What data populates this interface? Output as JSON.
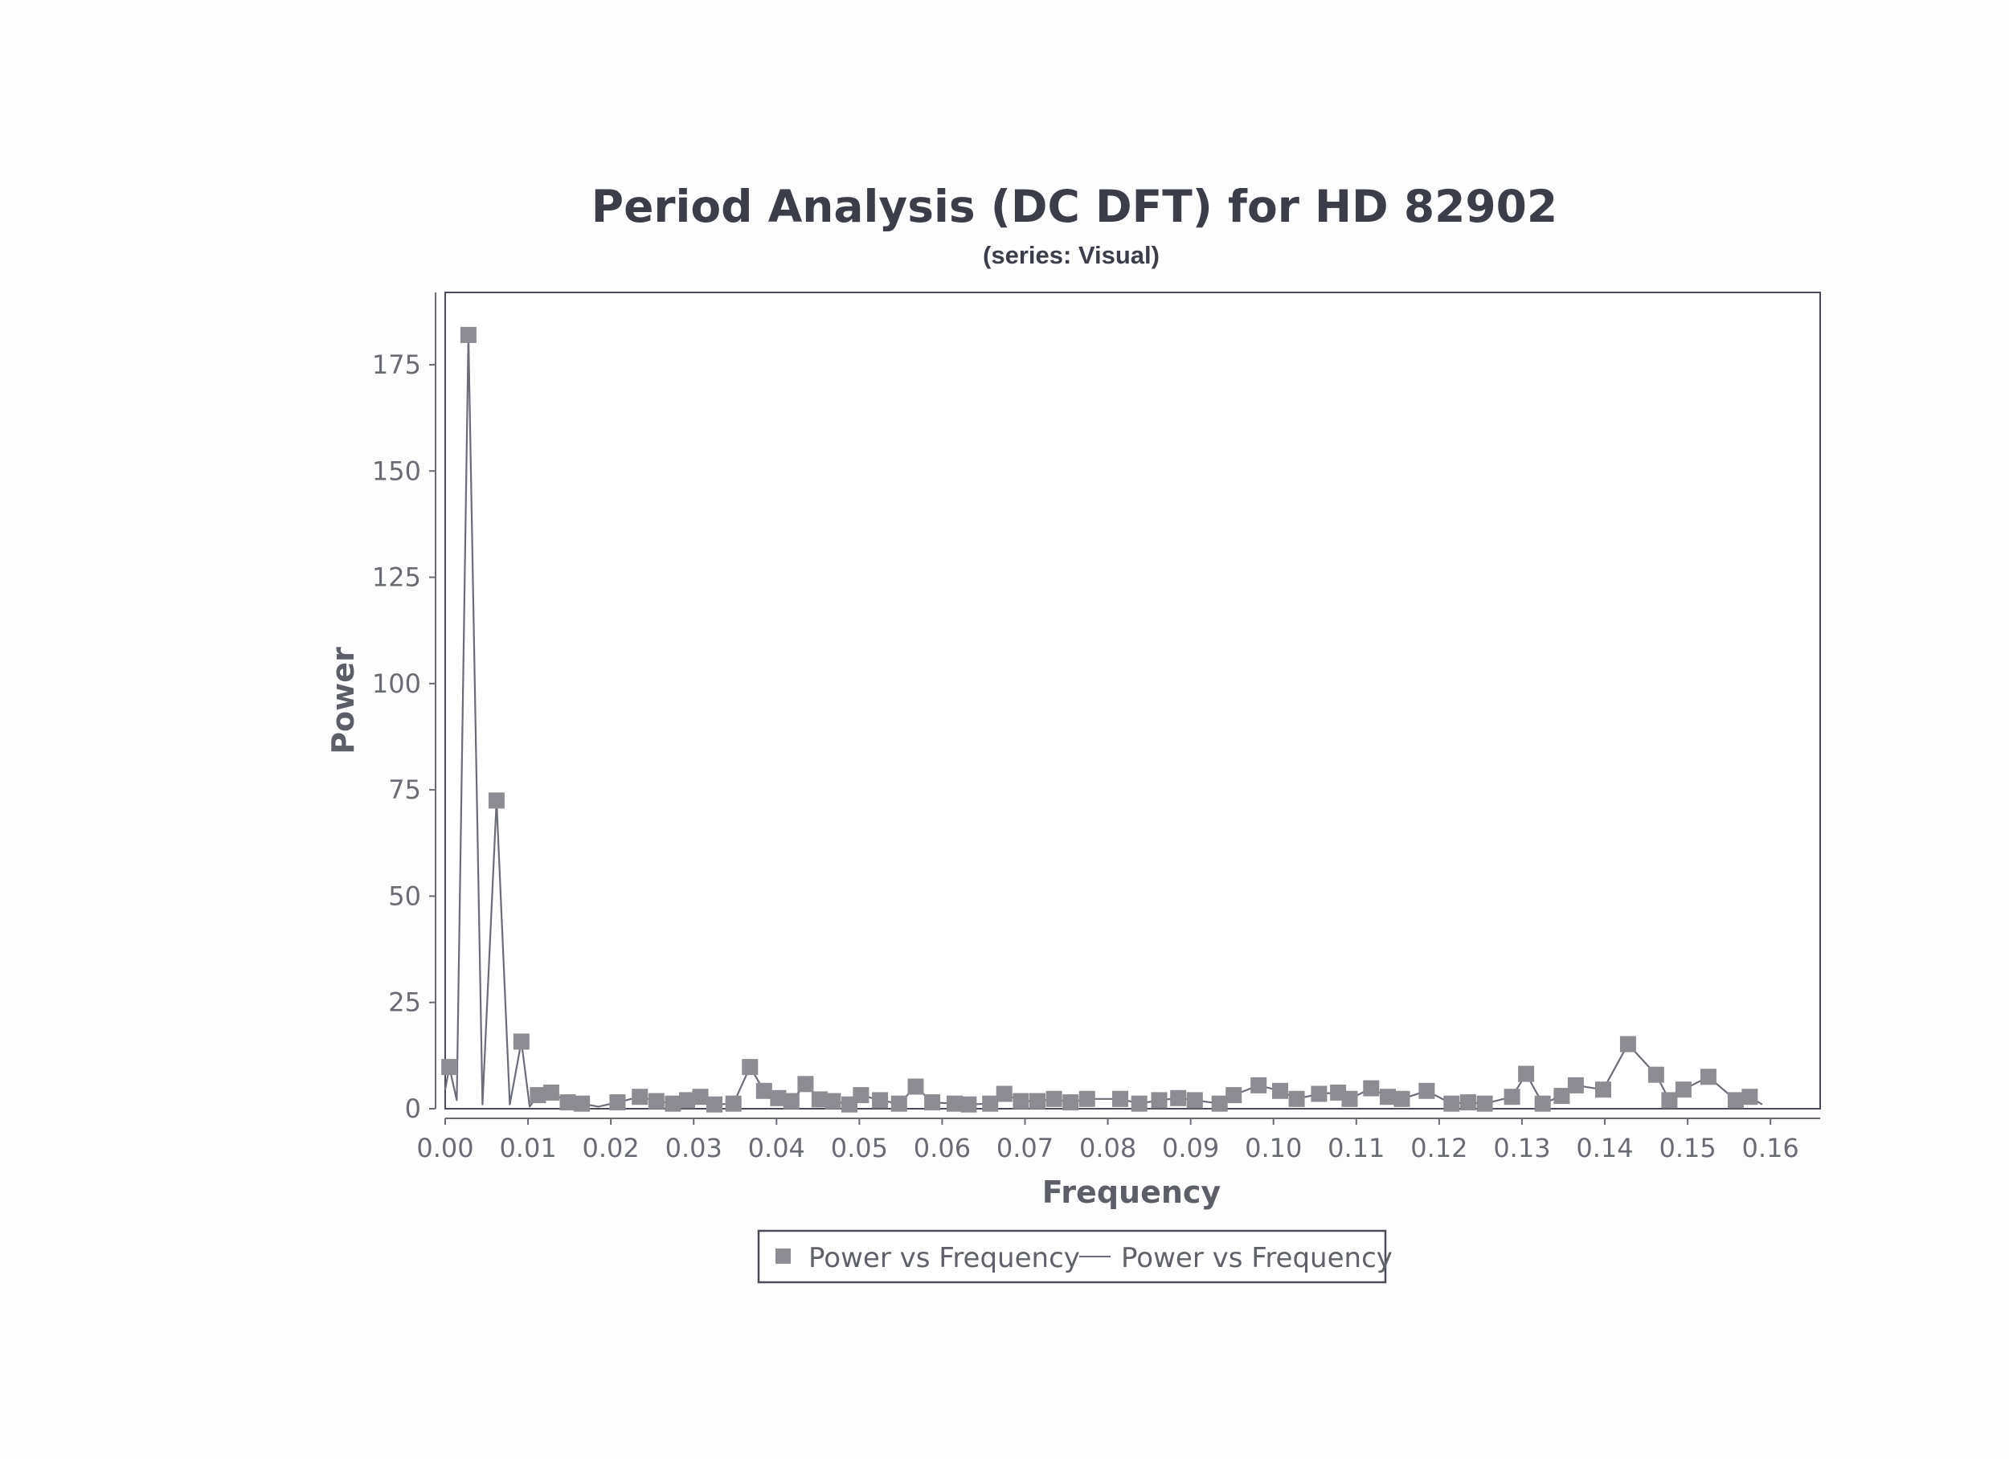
{
  "chart_data": {
    "type": "line",
    "title": "Period Analysis (DC DFT) for HD 82902",
    "subtitle": "(series: Visual)",
    "xlabel": "Frequency",
    "ylabel": "Power",
    "xlim": [
      0.0,
      0.166
    ],
    "ylim": [
      0,
      192
    ],
    "xticks": [
      "0.00",
      "0.01",
      "0.02",
      "0.03",
      "0.04",
      "0.05",
      "0.06",
      "0.07",
      "0.08",
      "0.09",
      "0.10",
      "0.11",
      "0.12",
      "0.13",
      "0.14",
      "0.15",
      "0.16"
    ],
    "yticks": [
      "0",
      "25",
      "50",
      "75",
      "100",
      "125",
      "150",
      "175"
    ],
    "legend": {
      "placement": "bottom",
      "entries": [
        "Power vs Frequency",
        "Power vs Frequency"
      ]
    },
    "colors": {
      "marker": "#8c8c92",
      "line": "#6b6d78",
      "frame": "#4a4c58"
    },
    "series": [
      {
        "name": "Power vs Frequency",
        "x": [
          0.0005,
          0.0028,
          0.0062,
          0.0092,
          0.0112,
          0.0128,
          0.0148,
          0.0165,
          0.0208,
          0.0235,
          0.0255,
          0.0275,
          0.0292,
          0.0308,
          0.0325,
          0.0348,
          0.0368,
          0.0385,
          0.0402,
          0.0418,
          0.0435,
          0.0452,
          0.0468,
          0.0488,
          0.0502,
          0.0525,
          0.0548,
          0.0568,
          0.0588,
          0.0615,
          0.0632,
          0.0658,
          0.0675,
          0.0695,
          0.0715,
          0.0735,
          0.0755,
          0.0775,
          0.0815,
          0.0838,
          0.0862,
          0.0885,
          0.0905,
          0.0935,
          0.0952,
          0.0982,
          0.1008,
          0.1028,
          0.1055,
          0.1078,
          0.1092,
          0.1118,
          0.1138,
          0.1155,
          0.1185,
          0.1215,
          0.1235,
          0.1255,
          0.1288,
          0.1305,
          0.1325,
          0.1348,
          0.1365,
          0.1398,
          0.1428,
          0.1462,
          0.1478,
          0.1495,
          0.1525,
          0.1558,
          0.1575
        ],
        "y": [
          9.8,
          182.0,
          72.5,
          15.8,
          3.2,
          3.8,
          1.5,
          1.2,
          1.5,
          2.8,
          1.8,
          1.2,
          2.0,
          2.8,
          1.0,
          1.2,
          9.8,
          4.2,
          2.5,
          1.8,
          5.8,
          2.2,
          1.8,
          1.0,
          3.2,
          2.0,
          1.2,
          5.2,
          1.5,
          1.2,
          1.0,
          1.2,
          3.5,
          1.8,
          1.8,
          2.3,
          1.5,
          2.3,
          2.3,
          1.2,
          2.0,
          2.5,
          2.0,
          1.2,
          3.2,
          5.5,
          4.2,
          2.3,
          3.5,
          3.8,
          2.3,
          4.8,
          2.8,
          2.3,
          4.2,
          1.2,
          1.5,
          1.2,
          2.8,
          8.2,
          1.2,
          3.0,
          5.5,
          4.5,
          15.2,
          8.0,
          2.0,
          4.5,
          7.5,
          2.0,
          2.8
        ]
      },
      {
        "name": "Power vs Frequency",
        "x": [
          0.0,
          0.0005,
          0.0014,
          0.0028,
          0.0045,
          0.0062,
          0.0078,
          0.0092,
          0.0102,
          0.0112,
          0.0128,
          0.0148,
          0.0165,
          0.0185,
          0.0208,
          0.0235,
          0.0255,
          0.0275,
          0.0292,
          0.0308,
          0.0325,
          0.0348,
          0.0368,
          0.0385,
          0.0402,
          0.0418,
          0.0435,
          0.0452,
          0.0468,
          0.0488,
          0.0502,
          0.0525,
          0.0548,
          0.0568,
          0.0588,
          0.0615,
          0.0632,
          0.0658,
          0.0675,
          0.0695,
          0.0715,
          0.0735,
          0.0755,
          0.0775,
          0.0815,
          0.0838,
          0.0862,
          0.0885,
          0.0905,
          0.0935,
          0.0952,
          0.0982,
          0.1008,
          0.1028,
          0.1055,
          0.1078,
          0.1092,
          0.1118,
          0.1138,
          0.1155,
          0.1185,
          0.1215,
          0.1235,
          0.1255,
          0.1288,
          0.1305,
          0.1325,
          0.1348,
          0.1365,
          0.1398,
          0.1428,
          0.1462,
          0.1478,
          0.1495,
          0.1525,
          0.1558,
          0.1575,
          0.159
        ],
        "y": [
          4.5,
          9.8,
          2.0,
          182.0,
          1.0,
          72.5,
          1.0,
          15.8,
          0.5,
          3.2,
          3.8,
          1.5,
          1.2,
          0.5,
          1.5,
          2.8,
          1.8,
          1.2,
          2.0,
          2.8,
          1.0,
          1.2,
          9.8,
          4.2,
          2.5,
          1.8,
          5.8,
          2.2,
          1.8,
          1.0,
          3.2,
          2.0,
          1.2,
          5.2,
          1.5,
          1.2,
          1.0,
          1.2,
          3.5,
          1.8,
          1.8,
          2.3,
          1.5,
          2.3,
          2.3,
          1.2,
          2.0,
          2.5,
          2.0,
          1.2,
          3.2,
          5.5,
          4.2,
          2.3,
          3.5,
          3.8,
          2.3,
          4.8,
          2.8,
          2.3,
          4.2,
          1.2,
          1.5,
          1.2,
          2.8,
          8.2,
          1.2,
          3.0,
          5.5,
          4.5,
          15.2,
          8.0,
          2.0,
          4.5,
          7.5,
          2.0,
          2.8,
          1.0
        ]
      }
    ]
  }
}
